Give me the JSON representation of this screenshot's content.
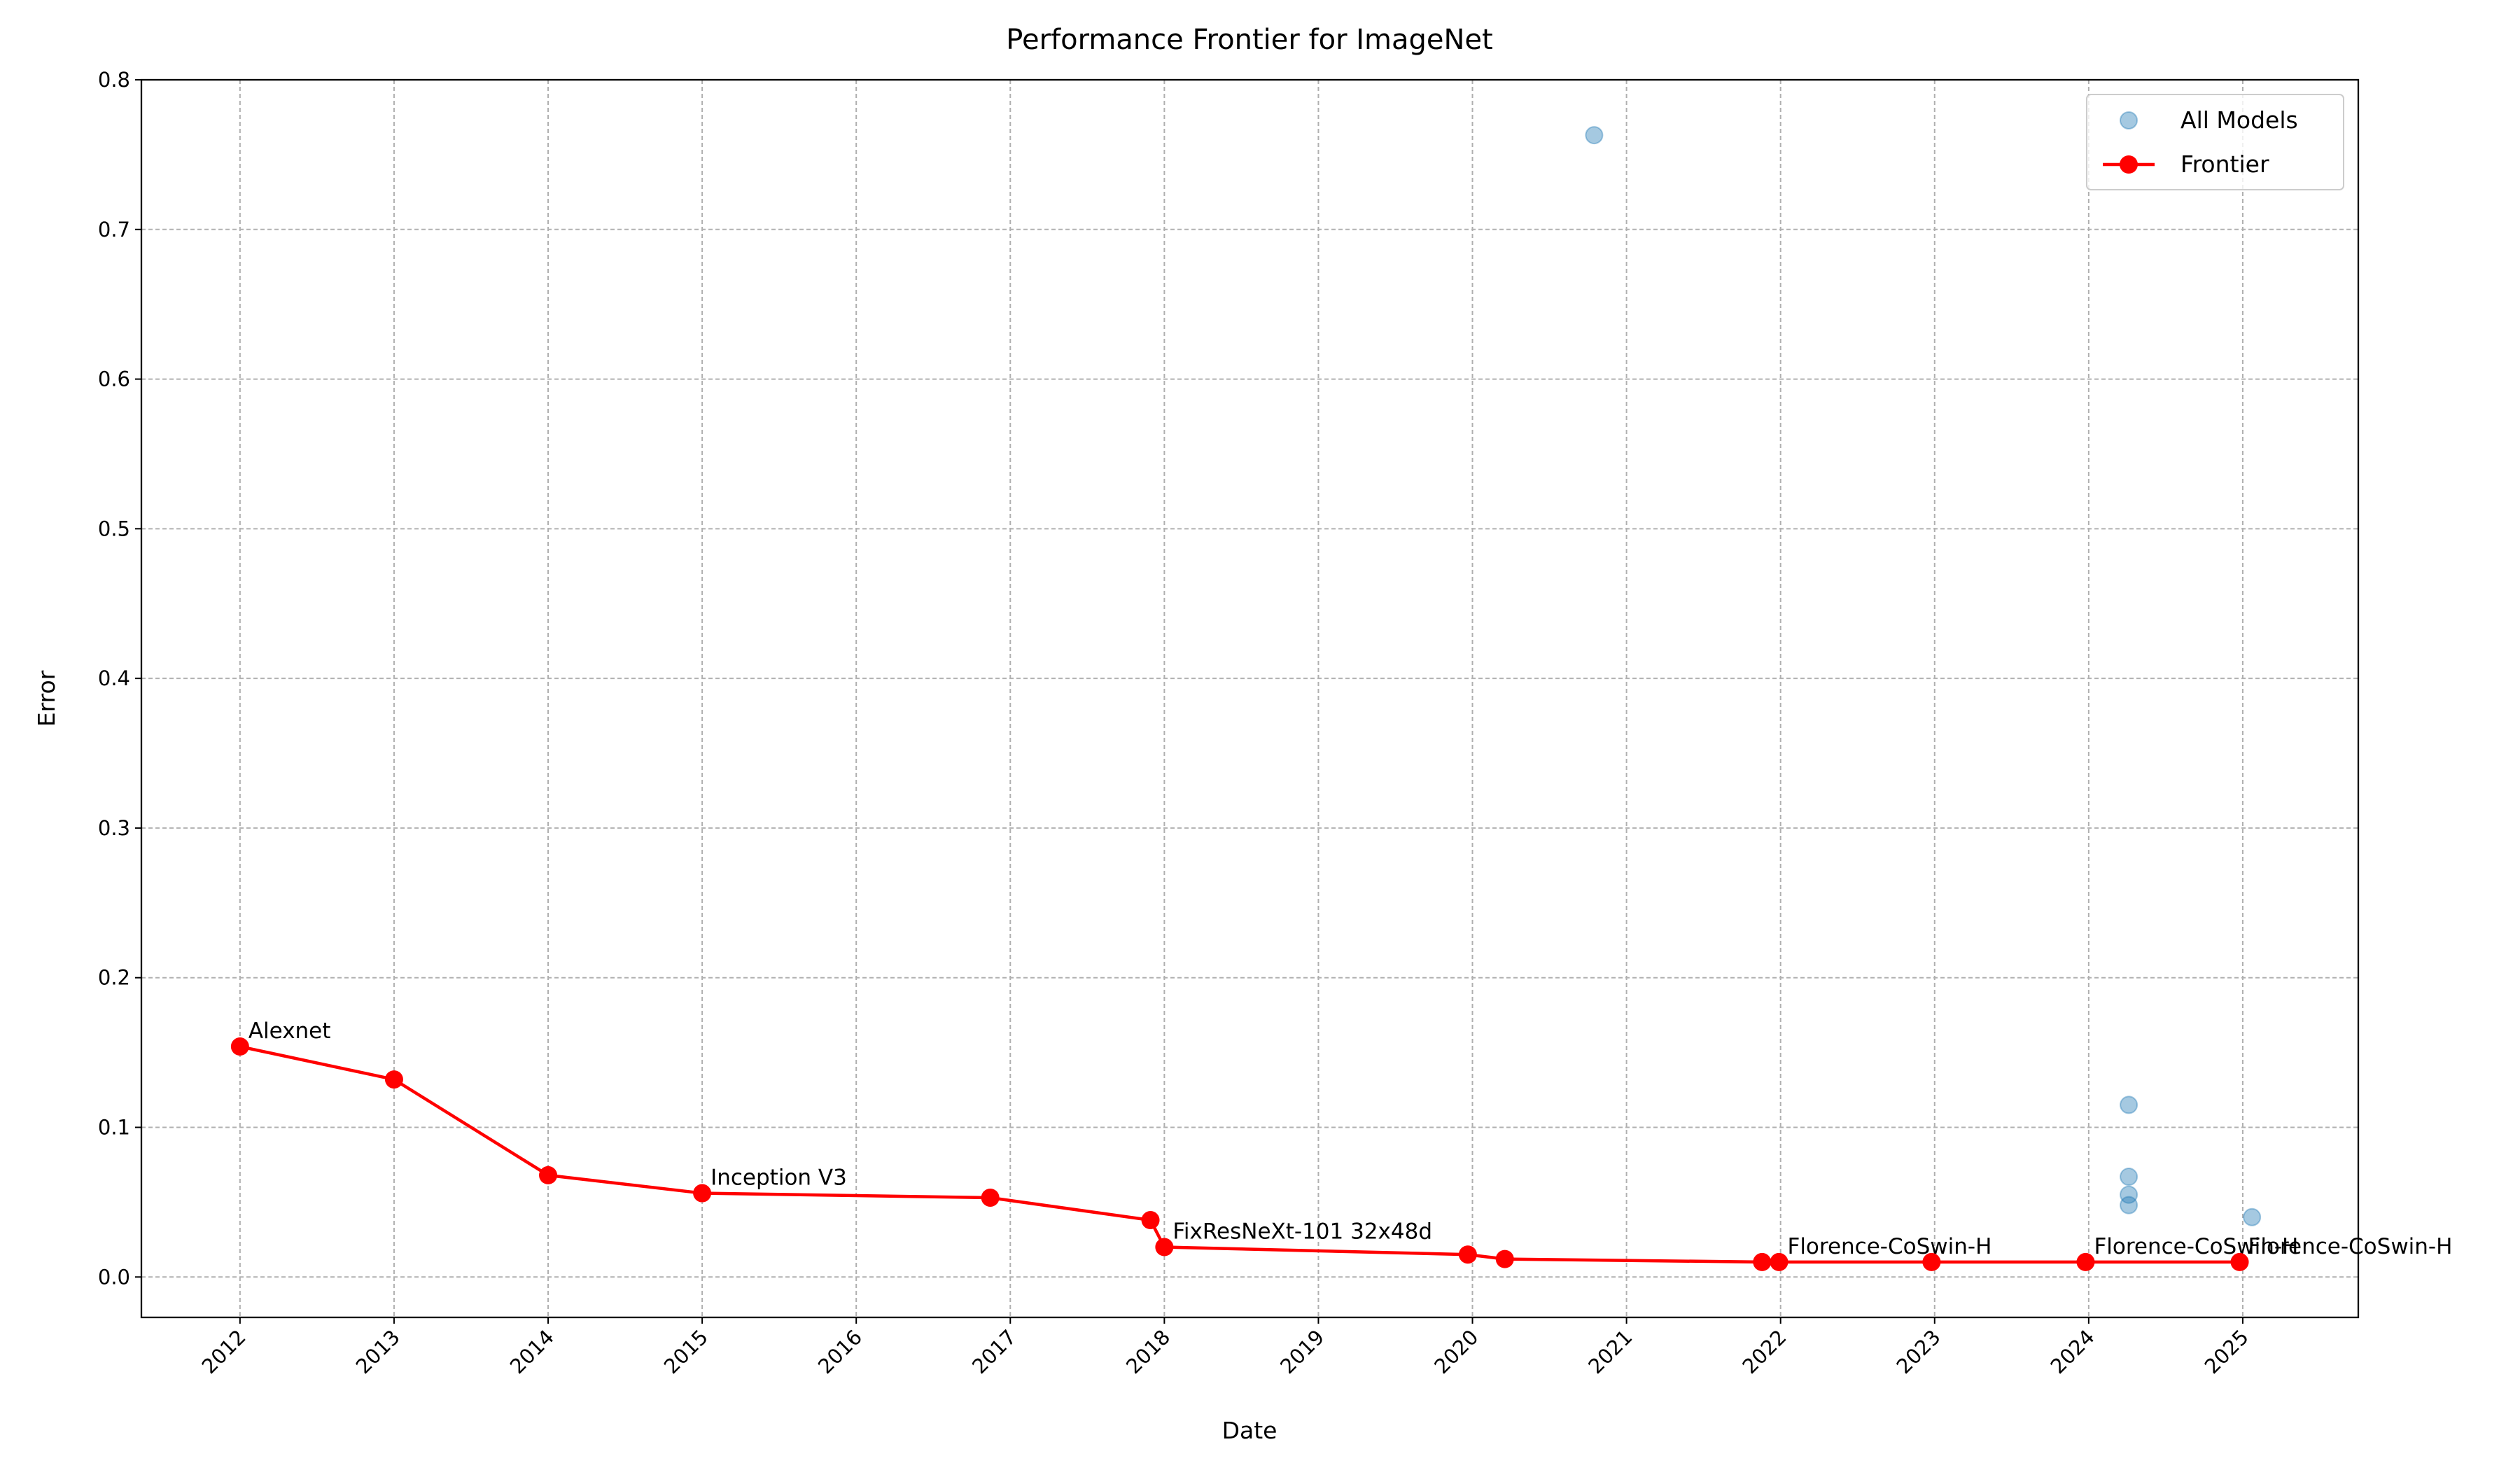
{
  "chart_data": {
    "type": "line",
    "title": "Performance Frontier for ImageNet",
    "x_label": "Date",
    "y_label": "Error",
    "xlim": [
      2011.36,
      2025.75
    ],
    "ylim": [
      -0.027,
      0.8
    ],
    "xticks": [
      2012,
      2013,
      2014,
      2015,
      2016,
      2017,
      2018,
      2019,
      2020,
      2021,
      2022,
      2023,
      2024,
      2025
    ],
    "yticks": [
      {
        "value": 0,
        "label": "0.0"
      },
      0.1,
      0.2,
      0.3,
      0.4,
      0.5,
      0.6,
      0.7,
      0.8
    ],
    "grid": true,
    "legend": "upper right",
    "series": [
      {
        "name": "All Models",
        "type": "scatter",
        "color": "#1f77b4",
        "x": [
          2020.79,
          2024.26,
          2024.26,
          2024.26,
          2024.26,
          2025.06
        ],
        "values": [
          0.763,
          0.115,
          0.067,
          0.055,
          0.048,
          0.04
        ]
      },
      {
        "name": "Frontier",
        "type": "line",
        "color": "#ff0000",
        "x": [
          2012.0,
          2013.0,
          2014.0,
          2015.0,
          2016.87,
          2017.91,
          2018.0,
          2019.97,
          2020.21,
          2021.88,
          2021.99,
          2022.98,
          2023.98,
          2024.98
        ],
        "values": [
          0.154,
          0.132,
          0.068,
          0.056,
          0.053,
          0.038,
          0.02,
          0.015,
          0.012,
          0.01,
          0.01,
          0.01,
          0.01,
          0.01
        ],
        "point_labels": [
          "Alexnet",
          null,
          null,
          "Inception V3",
          null,
          null,
          "FixResNeXt-101 32x48d",
          null,
          null,
          null,
          "Florence-CoSwin-H",
          null,
          "Florence-CoSwin-H",
          "Florence-CoSwin-H"
        ]
      }
    ]
  }
}
